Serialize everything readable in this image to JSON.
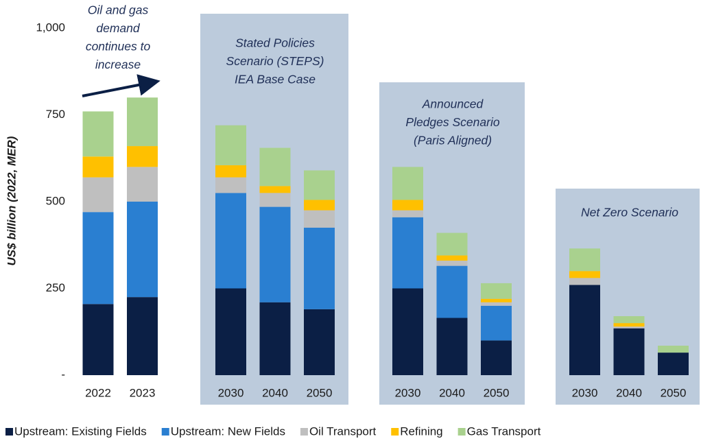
{
  "chart_data": {
    "type": "stacked-bar",
    "y_axis_label": "US$ billion (2022, MER)",
    "categories": [
      "2022",
      "2023",
      null,
      "2030",
      "2040",
      "2050",
      null,
      "2030",
      "2040",
      "2050",
      null,
      "2030",
      "2040",
      "2050"
    ],
    "series": [
      {
        "name": "Upstream: Existing Fields",
        "color": "#0b1f45",
        "values": [
          205,
          225,
          null,
          250,
          210,
          190,
          null,
          250,
          165,
          100,
          null,
          260,
          135,
          65
        ]
      },
      {
        "name": "Upstream: New Fields",
        "color": "#2a7fd1",
        "values": [
          265,
          275,
          null,
          275,
          275,
          235,
          null,
          205,
          150,
          100,
          null,
          0,
          0,
          0
        ]
      },
      {
        "name": "Oil Transport",
        "color": "#bfbfbf",
        "values": [
          100,
          100,
          null,
          45,
          40,
          50,
          null,
          20,
          15,
          10,
          null,
          20,
          5,
          0
        ]
      },
      {
        "name": "Refining",
        "color": "#ffc000",
        "values": [
          60,
          60,
          null,
          35,
          20,
          30,
          null,
          30,
          15,
          10,
          null,
          20,
          10,
          0
        ]
      },
      {
        "name": "Gas Transport",
        "color": "#a9d18e",
        "values": [
          130,
          140,
          null,
          115,
          110,
          85,
          null,
          95,
          65,
          45,
          null,
          65,
          20,
          20
        ]
      }
    ],
    "ylim": [
      0,
      1000
    ],
    "yticks": [
      {
        "value": 0,
        "label": "-"
      },
      250,
      500,
      750,
      {
        "value": 1000,
        "label": "1,000"
      }
    ],
    "annotations": [
      {
        "lines": [
          "Oil and gas",
          "demand",
          "continues to",
          "increase"
        ]
      },
      {
        "lines": [
          "Stated Policies",
          "Scenario (STEPS)",
          "IEA Base Case"
        ]
      },
      {
        "lines": [
          "Announced",
          "Pledges Scenario",
          "(Paris Aligned)"
        ]
      },
      {
        "lines": [
          "Net Zero Scenario"
        ]
      }
    ],
    "legend": "bottom"
  }
}
